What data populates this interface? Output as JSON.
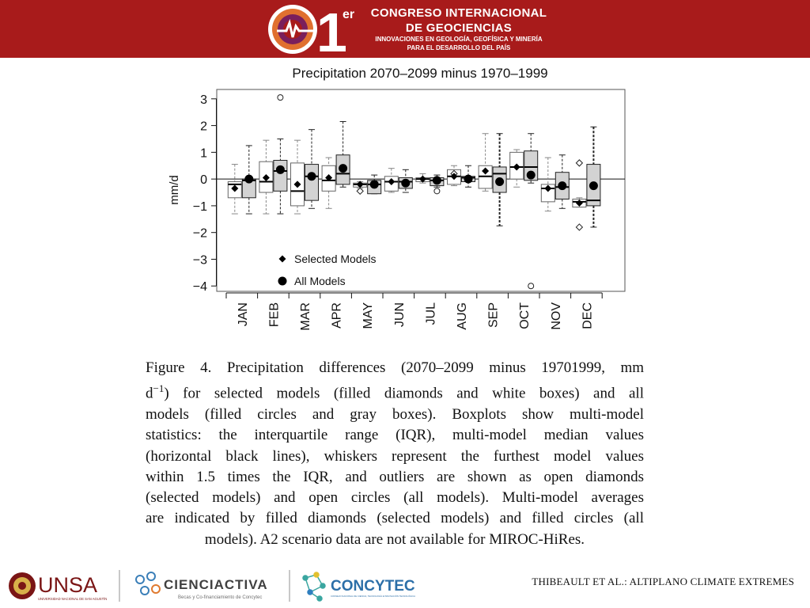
{
  "header": {
    "number": "1",
    "superscript": "er",
    "line1": "CONGRESO INTERNACIONAL",
    "line2": "DE GEOCIENCIAS",
    "line3": "INNOVACIONES EN GEOLOGÍA, GEOFÍSICA Y MINERÍA",
    "line4": "PARA EL DESARROLLO DEL PAÍS",
    "background": "#a81b1b"
  },
  "chart_data": {
    "type": "boxplot",
    "title": "Precipitation 2070–2099 minus 1970–1999",
    "ylabel": "mm/d",
    "ylim": [
      -4.2,
      3.35
    ],
    "yticks": [
      3,
      2,
      1,
      0,
      -1,
      -2,
      -3,
      -4
    ],
    "categories": [
      "JAN",
      "FEB",
      "MAR",
      "APR",
      "MAY",
      "JUN",
      "JUL",
      "AUG",
      "SEP",
      "OCT",
      "NOV",
      "DEC"
    ],
    "legend": [
      {
        "name": "Selected Models",
        "marker": "diamond"
      },
      {
        "name": "All Models",
        "marker": "circle"
      }
    ],
    "legend_position": "bottom-left",
    "series": [
      {
        "name": "Selected Models",
        "box_color": "#ffffff",
        "boxes": [
          {
            "q1": -0.7,
            "med": -0.2,
            "q3": -0.1,
            "low": -1.3,
            "high": 0.55,
            "mean": -0.35,
            "outliers": []
          },
          {
            "q1": -0.5,
            "med": -0.1,
            "q3": 0.65,
            "low": -1.3,
            "high": 1.45,
            "mean": 0.05,
            "outliers": []
          },
          {
            "q1": -1.0,
            "med": -0.45,
            "q3": 0.6,
            "low": -1.3,
            "high": 1.45,
            "mean": -0.2,
            "outliers": []
          },
          {
            "q1": -0.45,
            "med": -0.05,
            "q3": 0.5,
            "low": -1.1,
            "high": 0.8,
            "mean": 0.05,
            "outliers": []
          },
          {
            "q1": -0.3,
            "med": -0.2,
            "q3": -0.15,
            "low": -0.35,
            "high": -0.1,
            "mean": -0.2,
            "outliers": [
              -0.45
            ]
          },
          {
            "q1": -0.45,
            "med": -0.1,
            "q3": 0.1,
            "low": -0.5,
            "high": 0.4,
            "mean": -0.1,
            "outliers": []
          },
          {
            "q1": -0.1,
            "med": 0.0,
            "q3": 0.05,
            "low": -0.15,
            "high": 0.2,
            "mean": 0.0,
            "outliers": []
          },
          {
            "q1": -0.2,
            "med": 0.1,
            "q3": 0.35,
            "low": -0.25,
            "high": 0.5,
            "mean": 0.1,
            "outliers": [
              0.2
            ]
          },
          {
            "q1": -0.35,
            "med": 0.1,
            "q3": 0.5,
            "low": -0.45,
            "high": 1.7,
            "mean": 0.3,
            "outliers": []
          },
          {
            "q1": 0.0,
            "med": 0.45,
            "q3": 1.0,
            "low": -0.3,
            "high": 1.1,
            "mean": 0.45,
            "outliers": []
          },
          {
            "q1": -0.85,
            "med": -0.35,
            "q3": -0.2,
            "low": -1.2,
            "high": 0.8,
            "mean": -0.35,
            "outliers": []
          },
          {
            "q1": -1.05,
            "med": -0.85,
            "q3": -0.75,
            "low": -1.05,
            "high": -0.7,
            "mean": -0.9,
            "outliers": [
              0.6,
              -1.8
            ]
          }
        ]
      },
      {
        "name": "All Models",
        "box_color": "#d3d3d3",
        "boxes": [
          {
            "q1": -0.7,
            "med": -0.05,
            "q3": 0.0,
            "low": -1.3,
            "high": 1.25,
            "mean": 0.0,
            "outliers": []
          },
          {
            "q1": -0.45,
            "med": 0.3,
            "q3": 0.7,
            "low": -1.3,
            "high": 1.5,
            "mean": 0.35,
            "outliers": [
              3.05
            ]
          },
          {
            "q1": -0.8,
            "med": 0.1,
            "q3": 0.55,
            "low": -1.1,
            "high": 1.85,
            "mean": 0.1,
            "outliers": []
          },
          {
            "q1": -0.2,
            "med": 0.2,
            "q3": 0.9,
            "low": -0.3,
            "high": 2.15,
            "mean": 0.4,
            "outliers": []
          },
          {
            "q1": -0.55,
            "med": -0.2,
            "q3": -0.05,
            "low": -0.55,
            "high": 0.15,
            "mean": -0.2,
            "outliers": []
          },
          {
            "q1": -0.35,
            "med": -0.1,
            "q3": 0.05,
            "low": -0.5,
            "high": 0.35,
            "mean": -0.15,
            "outliers": []
          },
          {
            "q1": -0.25,
            "med": -0.05,
            "q3": 0.05,
            "low": -0.3,
            "high": 0.15,
            "mean": -0.05,
            "outliers": [
              -0.45
            ]
          },
          {
            "q1": -0.1,
            "med": 0.05,
            "q3": 0.1,
            "low": -0.3,
            "high": 0.5,
            "mean": 0.0,
            "outliers": []
          },
          {
            "q1": -0.5,
            "med": 0.2,
            "q3": 0.45,
            "low": -1.75,
            "high": 1.7,
            "mean": -0.1,
            "outliers": []
          },
          {
            "q1": -0.05,
            "med": 0.45,
            "q3": 1.05,
            "low": -0.15,
            "high": 1.7,
            "mean": 0.15,
            "outliers": [
              -4.0
            ]
          },
          {
            "q1": -0.75,
            "med": -0.3,
            "q3": 0.25,
            "low": -1.1,
            "high": 0.9,
            "mean": -0.25,
            "outliers": []
          },
          {
            "q1": -1.0,
            "med": -0.8,
            "q3": 0.55,
            "low": -1.8,
            "high": 1.95,
            "mean": -0.25,
            "outliers": []
          }
        ]
      }
    ]
  },
  "caption": {
    "lines": [
      "Figure 4. Precipitation differences (2070–2099 minus 19701999, mm",
      "d−1) for selected models (filled diamonds and white boxes) and all",
      "models (filled circles and gray boxes). Boxplots show multi-model",
      "statistics: the interquartile range (IQR), multi-model median values",
      "(horizontal black lines), whiskers represent the furthest model values",
      "within 1.5 times the IQR, and outliers are shown as open diamonds",
      "(selected models) and open circles (all models). Multi-model averages",
      "are indicated by filled diamonds (selected models) and filled circles (all",
      "models). A2 scenario data are not available for MIROC-HiRes."
    ]
  },
  "footer": {
    "unsa": "UNSA",
    "unsa_sub": "UNIVERSIDAD NACIONAL DE SAN AGUSTÍN",
    "cienciactiva": "CIENCIACTIVA",
    "cienciactiva_sub": "Becas y Co-financiamiento de Concytec",
    "concytec": "CONCYTEC",
    "concytec_sub": "CONSEJO NACIONAL DE CIENCIA, TECNOLOGÍA E INNOVACIÓN TECNOLÓGICA",
    "citation": "THIBEAULT ET AL.: ALTIPLANO CLIMATE EXTREMES"
  }
}
